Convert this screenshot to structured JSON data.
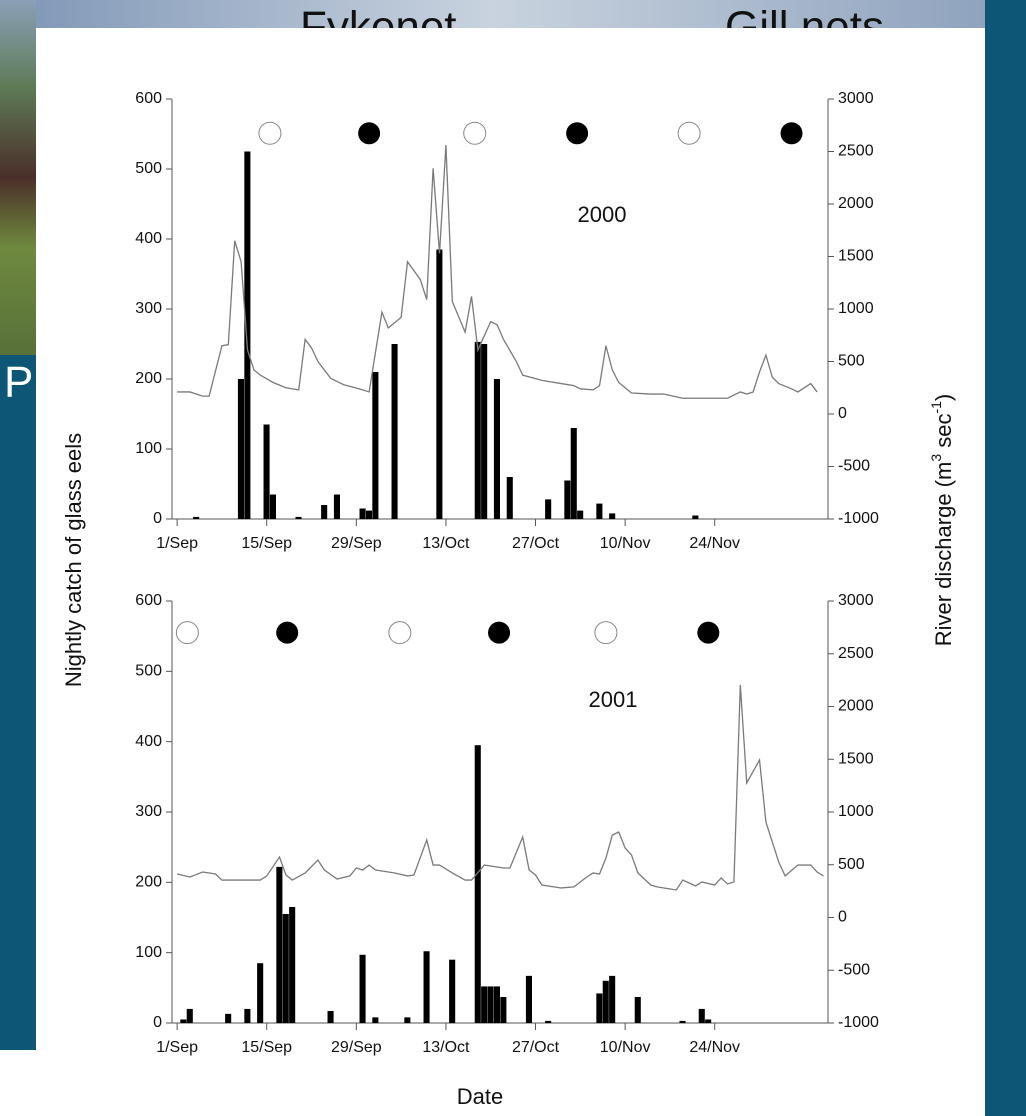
{
  "slide": {
    "texts": [
      "Fykenet",
      "Gill nets",
      "P"
    ]
  },
  "shared": {
    "ylabel": "Nightly catch of glass eels",
    "y2label_parts": [
      "River discharge (m",
      "3",
      " sec",
      "-1",
      ")"
    ],
    "xlabel": "Date"
  },
  "chart_data": [
    {
      "type": "bar_line",
      "annotation": "2000",
      "xlim": [
        -0.8,
        101.7
      ],
      "xticks": [
        {
          "value": 0,
          "label": "1/Sep"
        },
        {
          "value": 14,
          "label": "15/Sep"
        },
        {
          "value": 28,
          "label": "29/Sep"
        },
        {
          "value": 42,
          "label": "13/Oct"
        },
        {
          "value": 56,
          "label": "27/Oct"
        },
        {
          "value": 70,
          "label": "10/Nov"
        },
        {
          "value": 84,
          "label": "24/Nov"
        }
      ],
      "ylim": [
        0,
        600
      ],
      "yticks": [
        0,
        100,
        200,
        300,
        400,
        500,
        600
      ],
      "y2lim": [
        -1000,
        3000
      ],
      "y2ticks": [
        -1000,
        -500,
        0,
        500,
        1000,
        1500,
        2000,
        2500,
        3000
      ],
      "open_circle_x": [
        14.5,
        46.5,
        80
      ],
      "filled_circle_x": [
        30,
        62.5,
        96
      ],
      "circle_y": 551,
      "series": [
        {
          "type": "bar",
          "color": "#000000",
          "x": [
            3,
            10,
            11,
            14,
            15,
            19,
            23,
            25,
            29,
            30,
            31,
            34,
            41,
            47,
            48,
            50,
            52,
            58,
            61,
            62,
            63,
            66,
            68,
            81
          ],
          "values": [
            3,
            200,
            525,
            135,
            35,
            3,
            20,
            35,
            15,
            12,
            210,
            250,
            385,
            253,
            250,
            200,
            60,
            28,
            55,
            130,
            12,
            22,
            8,
            5
          ]
        },
        {
          "type": "line",
          "axis": "y2",
          "color": "#7a7a7a",
          "x": [
            0,
            2,
            4,
            5,
            7,
            8,
            9,
            10,
            11,
            12,
            13,
            15,
            17,
            19,
            20,
            21,
            22,
            24,
            26,
            29,
            30,
            32,
            33,
            34,
            35,
            36,
            38,
            39,
            40,
            41,
            42,
            43,
            45,
            46,
            47,
            49,
            50,
            51,
            53,
            54,
            57,
            60,
            62,
            63,
            65,
            66,
            67,
            68,
            69,
            71,
            74,
            76,
            79,
            82,
            85,
            86,
            88,
            89,
            90,
            91,
            92,
            93,
            94,
            96,
            97,
            99,
            100
          ],
          "values": [
            210,
            210,
            170,
            170,
            650,
            660,
            1650,
            1450,
            610,
            420,
            370,
            300,
            250,
            230,
            710,
            630,
            500,
            340,
            280,
            230,
            210,
            970,
            820,
            870,
            920,
            1450,
            1280,
            1090,
            2340,
            1530,
            2560,
            1070,
            780,
            1120,
            610,
            880,
            850,
            710,
            500,
            370,
            320,
            290,
            270,
            240,
            230,
            270,
            650,
            420,
            300,
            200,
            190,
            190,
            150,
            150,
            150,
            150,
            210,
            190,
            210,
            400,
            560,
            350,
            290,
            240,
            210,
            290,
            210
          ]
        }
      ]
    },
    {
      "type": "bar_line",
      "annotation": "2001",
      "xlim": [
        -0.8,
        101.7
      ],
      "xticks": [
        {
          "value": 0,
          "label": "1/Sep"
        },
        {
          "value": 14,
          "label": "15/Sep"
        },
        {
          "value": 28,
          "label": "29/Sep"
        },
        {
          "value": 42,
          "label": "13/Oct"
        },
        {
          "value": 56,
          "label": "27/Oct"
        },
        {
          "value": 70,
          "label": "10/Nov"
        },
        {
          "value": 84,
          "label": "24/Nov"
        }
      ],
      "ylim": [
        0,
        600
      ],
      "yticks": [
        0,
        100,
        200,
        300,
        400,
        500,
        600
      ],
      "y2lim": [
        -1000,
        3000
      ],
      "y2ticks": [
        -1000,
        -500,
        0,
        500,
        1000,
        1500,
        2000,
        2500,
        3000
      ],
      "open_circle_x": [
        1.6,
        34.8,
        67
      ],
      "filled_circle_x": [
        17.2,
        50.3,
        83
      ],
      "circle_y": 555,
      "series": [
        {
          "type": "bar",
          "color": "#000000",
          "x": [
            1,
            2,
            8,
            11,
            13,
            16,
            17,
            18,
            24,
            29,
            31,
            36,
            39,
            43,
            47,
            48,
            49,
            50,
            51,
            55,
            58,
            66,
            67,
            68,
            72,
            79,
            82,
            83
          ],
          "values": [
            5,
            20,
            13,
            20,
            85,
            222,
            155,
            165,
            17,
            97,
            8,
            8,
            102,
            90,
            395,
            52,
            52,
            52,
            37,
            67,
            3,
            42,
            60,
            67,
            37,
            3,
            20,
            5
          ]
        },
        {
          "type": "line",
          "axis": "y2",
          "color": "#7a7a7a",
          "x": [
            0,
            2,
            4,
            6,
            7,
            10,
            12,
            13,
            14,
            16,
            17,
            18,
            20,
            22,
            23,
            25,
            27,
            28,
            29,
            30,
            31,
            32,
            34,
            36,
            37,
            39,
            40,
            41,
            43,
            45,
            46,
            48,
            49,
            51,
            52,
            54,
            55,
            56,
            57,
            60,
            62,
            64,
            65,
            66,
            67,
            68,
            69,
            70,
            71,
            72,
            74,
            75,
            78,
            79,
            80,
            81,
            82,
            84,
            85,
            86,
            87,
            88,
            89,
            91,
            92,
            94,
            95,
            97,
            99,
            100,
            101
          ],
          "values": [
            412,
            384,
            431,
            412,
            355,
            355,
            355,
            355,
            394,
            573,
            403,
            355,
            422,
            545,
            450,
            365,
            394,
            469,
            450,
            497,
            450,
            441,
            422,
            394,
            403,
            735,
            497,
            497,
            422,
            355,
            355,
            497,
            488,
            469,
            469,
            763,
            450,
            403,
            308,
            280,
            290,
            384,
            422,
            412,
            564,
            781,
            810,
            659,
            592,
            422,
            308,
            290,
            261,
            355,
            327,
            299,
            337,
            308,
            375,
            318,
            337,
            2205,
            1275,
            1493,
            905,
            526,
            394,
            497,
            497,
            431,
            394
          ]
        }
      ]
    }
  ]
}
